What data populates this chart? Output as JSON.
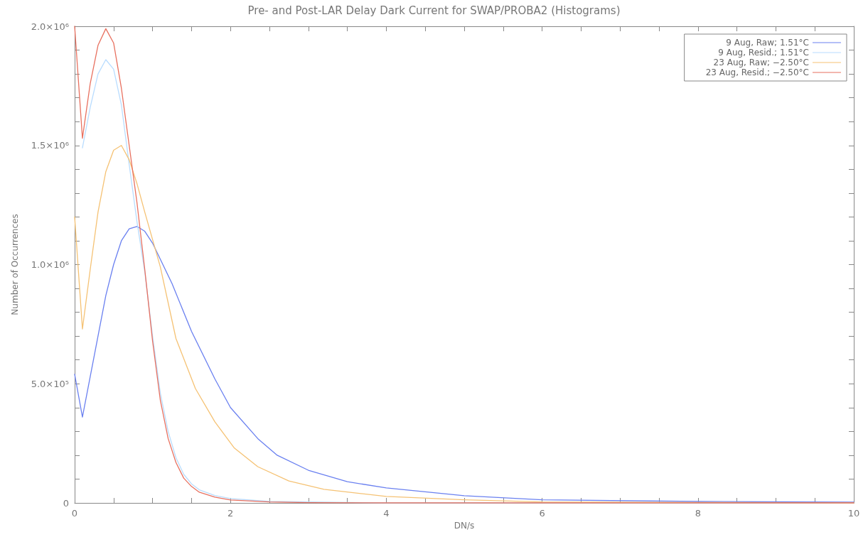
{
  "chart_data": {
    "type": "line",
    "title": "Pre- and Post-LAR Delay Dark Current for SWAP/PROBA2 (Histograms)",
    "xlabel": "DN/s",
    "ylabel": "Number of Occurrences",
    "xlim": [
      0,
      10
    ],
    "ylim": [
      0,
      2000000
    ],
    "xticks": [
      0,
      {
        "value": 0.5,
        "label": null
      },
      {
        "value": 1,
        "label": null
      },
      {
        "value": 1.5,
        "label": null
      },
      2,
      {
        "value": 2.5,
        "label": null
      },
      {
        "value": 3,
        "label": null
      },
      {
        "value": 3.5,
        "label": null
      },
      4,
      {
        "value": 4.5,
        "label": null
      },
      {
        "value": 5,
        "label": null
      },
      {
        "value": 5.5,
        "label": null
      },
      6,
      {
        "value": 6.5,
        "label": null
      },
      {
        "value": 7,
        "label": null
      },
      {
        "value": 7.5,
        "label": null
      },
      8,
      {
        "value": 8.5,
        "label": null
      },
      {
        "value": 9,
        "label": null
      },
      {
        "value": 9.5,
        "label": null
      },
      10
    ],
    "yticks": [
      0,
      {
        "value": 100000,
        "label": null
      },
      {
        "value": 200000,
        "label": null
      },
      {
        "value": 300000,
        "label": null
      },
      {
        "value": 400000,
        "label": null
      },
      {
        "value": 500000,
        "label": "5.0×10⁵"
      },
      {
        "value": 600000,
        "label": null
      },
      {
        "value": 700000,
        "label": null
      },
      {
        "value": 800000,
        "label": null
      },
      {
        "value": 900000,
        "label": null
      },
      {
        "value": 1000000,
        "label": "1.0×10⁶"
      },
      {
        "value": 1100000,
        "label": null
      },
      {
        "value": 1200000,
        "label": null
      },
      {
        "value": 1300000,
        "label": null
      },
      {
        "value": 1400000,
        "label": null
      },
      {
        "value": 1500000,
        "label": "1.5×10⁶"
      },
      {
        "value": 1600000,
        "label": null
      },
      {
        "value": 1700000,
        "label": null
      },
      {
        "value": 1800000,
        "label": null
      },
      {
        "value": 1900000,
        "label": null
      },
      {
        "value": 2000000,
        "label": "2.0×10⁶"
      }
    ],
    "grid": false,
    "legend": "top right",
    "marker": "none",
    "line_style": "solid",
    "series": [
      {
        "name": "9 Aug, Raw; 1.51°C",
        "color": "#6a80f0",
        "x": [
          0,
          0.1,
          0.2,
          0.3,
          0.4,
          0.5,
          0.6,
          0.7,
          0.8,
          0.9,
          1.0,
          1.25,
          1.5,
          1.8,
          2.0,
          2.35,
          2.6,
          3.0,
          3.5,
          4.0,
          5.0,
          6.0,
          8.0,
          10.0
        ],
        "values": [
          540000,
          360000,
          530000,
          700000,
          870000,
          1000000,
          1100000,
          1150000,
          1160000,
          1140000,
          1090000,
          920000,
          720000,
          520000,
          400000,
          270000,
          200000,
          137000,
          89000,
          63000,
          30000,
          13000,
          6000,
          3000
        ]
      },
      {
        "name": "9 Aug, Resid.; 1.51°C",
        "color": "#b8dcff",
        "x": [
          0.1,
          0.2,
          0.3,
          0.4,
          0.5,
          0.6,
          0.7,
          0.8,
          0.9,
          1.0,
          1.1,
          1.2,
          1.3,
          1.4,
          1.5,
          1.6,
          1.8,
          2.0,
          2.5,
          4.0,
          10.0
        ],
        "values": [
          1490000,
          1660000,
          1800000,
          1860000,
          1820000,
          1670000,
          1420000,
          1180000,
          970000,
          700000,
          460000,
          300000,
          190000,
          120000,
          80000,
          55000,
          31000,
          18000,
          6000,
          0,
          0
        ]
      },
      {
        "name": "23 Aug, Raw; −2.50°C",
        "color": "#f5c274",
        "x": [
          0,
          0.1,
          0.2,
          0.3,
          0.4,
          0.5,
          0.6,
          0.7,
          0.8,
          0.9,
          1.1,
          1.3,
          1.55,
          1.8,
          2.05,
          2.35,
          2.75,
          3.2,
          4.0,
          5.0,
          6.0,
          8.0,
          10.0
        ],
        "values": [
          1200000,
          730000,
          980000,
          1220000,
          1390000,
          1480000,
          1500000,
          1440000,
          1340000,
          1220000,
          990000,
          690000,
          480000,
          340000,
          230000,
          152000,
          92000,
          57000,
          27000,
          13000,
          4000,
          2000,
          0
        ]
      },
      {
        "name": "23 Aug, Resid.; −2.50°C",
        "color": "#e8705f",
        "x": [
          0,
          0.1,
          0.2,
          0.3,
          0.4,
          0.5,
          0.6,
          0.7,
          0.8,
          0.9,
          1.0,
          1.1,
          1.2,
          1.3,
          1.4,
          1.5,
          1.6,
          1.8,
          2.0,
          2.5,
          3.0,
          4.0,
          10.0
        ],
        "values": [
          2000000,
          1530000,
          1760000,
          1920000,
          1990000,
          1930000,
          1740000,
          1500000,
          1260000,
          980000,
          680000,
          430000,
          270000,
          170000,
          104000,
          69000,
          45000,
          24000,
          12000,
          4000,
          1000,
          0,
          0
        ]
      }
    ]
  }
}
